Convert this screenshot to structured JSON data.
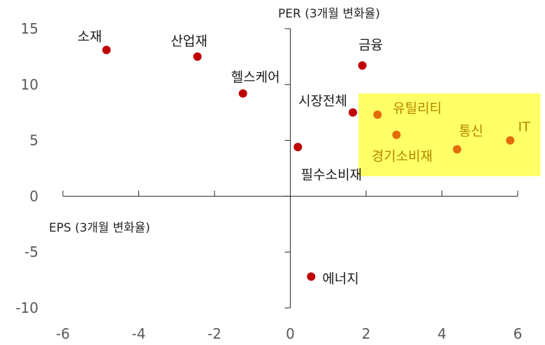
{
  "chart_data": {
    "type": "scatter",
    "title": "",
    "xlabel": "EPS (3개월 변화율)",
    "ylabel": "PER (3개월 변화율)",
    "xlim": [
      -6,
      6
    ],
    "ylim": [
      -10,
      15
    ],
    "x_ticks": [
      -6,
      -4,
      -2,
      0,
      2,
      4,
      6
    ],
    "y_ticks": [
      -10,
      -5,
      0,
      5,
      10,
      15
    ],
    "grid": false,
    "highlight_region": {
      "x": [
        1.8,
        6.6
      ],
      "y": [
        1.8,
        9.2
      ],
      "color": "#ffff66"
    },
    "colors": {
      "default": "#c00000",
      "highlighted": "#e36c0a",
      "highlighted_label": "#b38600",
      "label": "#1a1a1a"
    },
    "points": [
      {
        "label": "소재",
        "x": -4.85,
        "y": 13.1,
        "highlighted": false
      },
      {
        "label": "산업재",
        "x": -2.45,
        "y": 12.5,
        "highlighted": false
      },
      {
        "label": "헬스케어",
        "x": -1.25,
        "y": 9.2,
        "highlighted": false
      },
      {
        "label": "금융",
        "x": 1.9,
        "y": 11.7,
        "highlighted": false
      },
      {
        "label": "시장전체",
        "x": 1.65,
        "y": 7.5,
        "highlighted": false
      },
      {
        "label": "유틸리티",
        "x": 2.3,
        "y": 7.3,
        "highlighted": true
      },
      {
        "label": "경기소비재",
        "x": 2.8,
        "y": 5.5,
        "highlighted": true
      },
      {
        "label": "통신",
        "x": 4.4,
        "y": 4.2,
        "highlighted": true
      },
      {
        "label": "IT",
        "x": 5.8,
        "y": 5.0,
        "highlighted": true
      },
      {
        "label": "필수소비재",
        "x": 0.2,
        "y": 4.4,
        "highlighted": false
      },
      {
        "label": "에너지",
        "x": 0.55,
        "y": -7.2,
        "highlighted": false
      }
    ]
  }
}
